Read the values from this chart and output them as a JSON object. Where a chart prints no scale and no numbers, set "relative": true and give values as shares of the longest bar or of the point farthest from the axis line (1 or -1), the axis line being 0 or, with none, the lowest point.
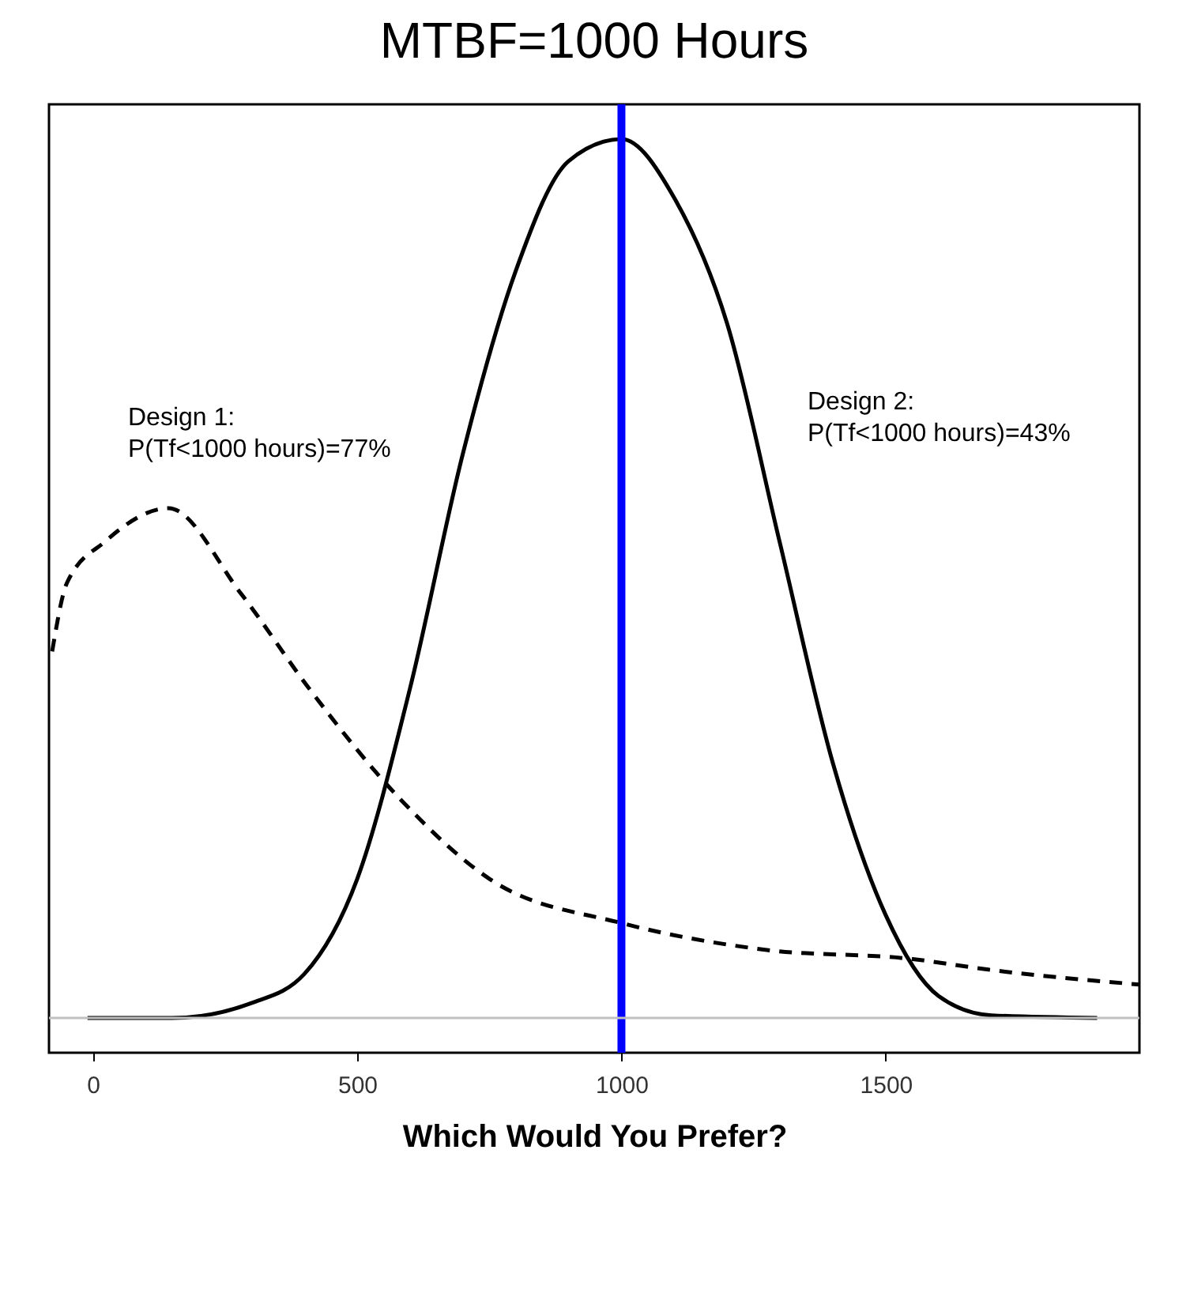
{
  "chart_data": {
    "type": "line",
    "title": "MTBF=1000 Hours",
    "xlabel": "Which Would You Prefer?",
    "relative": true,
    "xlim": [
      -83,
      1980
    ],
    "xticks": [
      0,
      500,
      1000,
      1500
    ],
    "grid": false,
    "series": [
      {
        "color": "#000000",
        "line_style": "dashed",
        "x": [
          -77,
          -49,
          23,
          143,
          280,
          409,
          580,
          751,
          1000,
          1266,
          1551,
          1694,
          1980
        ],
        "values": [
          0.417,
          0.495,
          0.542,
          0.58,
          0.483,
          0.375,
          0.25,
          0.158,
          0.108,
          0.078,
          0.067,
          0.055,
          0.038
        ]
      },
      {
        "color": "#000000",
        "line_style": "solid",
        "x": [
          -10,
          150,
          300,
          400,
          500,
          600,
          700,
          800,
          900,
          1000,
          1100,
          1200,
          1300,
          1400,
          1500,
          1600,
          1700,
          1900
        ],
        "values": [
          0,
          0,
          0.017,
          0.05,
          0.158,
          0.375,
          0.642,
          0.85,
          0.975,
          1.0,
          0.933,
          0.79,
          0.54,
          0.29,
          0.117,
          0.025,
          0.003,
          0
        ]
      }
    ],
    "ref_lines": [
      {
        "axis": "x",
        "value": 1000,
        "color": "#0000ff"
      },
      {
        "axis": "y",
        "value": 0,
        "color": "#c0c0c0"
      }
    ],
    "annotations": [
      "Design 1:\n  P(Tf<1000 hours)=77%",
      "Design 2:\n  P(Tf<1000 hours)=43%"
    ]
  }
}
